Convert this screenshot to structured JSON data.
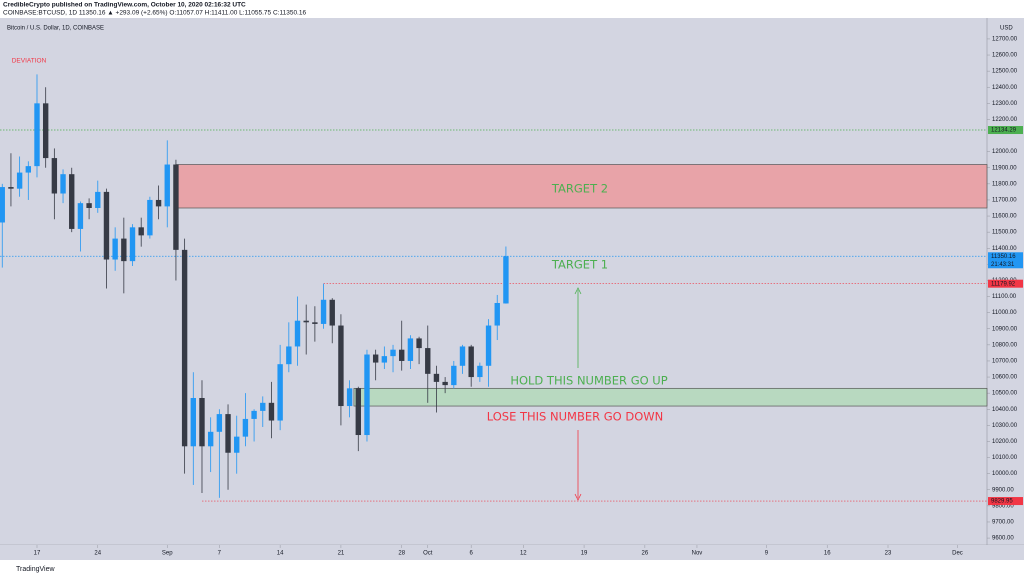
{
  "chart_data": {
    "type": "candlestick",
    "header": "CredibleCrypto published on TradingView.com, October 10, 2020 02:16:32 UTC",
    "ticker_line": "COINBASE:BTCUSD, 1D 11350.16 ▲ +293.09 (+2.65%) O:11057.07 H:11411.00 L:11055.75 C:11350.16",
    "title": "Bitcoin / U.S. Dollar, 1D, COINBASE",
    "y_axis_label": "USD",
    "footer": "TradingView",
    "up_color": "#2196f3",
    "down_color": "#363a45",
    "xlim": [
      -0.26,
      113.4
    ],
    "ylim": [
      9557,
      12830
    ],
    "xticks": [
      {
        "value": 4,
        "label": "17"
      },
      {
        "value": 11,
        "label": "24"
      },
      {
        "value": 19,
        "label": "Sep"
      },
      {
        "value": 25,
        "label": "7"
      },
      {
        "value": 32,
        "label": "14"
      },
      {
        "value": 39,
        "label": "21"
      },
      {
        "value": 46,
        "label": "28"
      },
      {
        "value": 49,
        "label": "Oct"
      },
      {
        "value": 54,
        "label": "6"
      },
      {
        "value": 60,
        "label": "12"
      },
      {
        "value": 67,
        "label": "19"
      },
      {
        "value": 74,
        "label": "26"
      },
      {
        "value": 80,
        "label": "Nov"
      },
      {
        "value": 88,
        "label": "9"
      },
      {
        "value": 95,
        "label": "16"
      },
      {
        "value": 102,
        "label": "23"
      },
      {
        "value": 110,
        "label": "Dec"
      }
    ],
    "yticks": [
      {
        "value": 9600,
        "label": "9600.00"
      },
      {
        "value": 9700,
        "label": "9700.00"
      },
      {
        "value": 9800,
        "label": "9800.00"
      },
      {
        "value": 9900,
        "label": "9900.00"
      },
      {
        "value": 10000,
        "label": "10000.00"
      },
      {
        "value": 10100,
        "label": "10100.00"
      },
      {
        "value": 10200,
        "label": "10200.00"
      },
      {
        "value": 10300,
        "label": "10300.00"
      },
      {
        "value": 10400,
        "label": "10400.00"
      },
      {
        "value": 10500,
        "label": "10500.00"
      },
      {
        "value": 10600,
        "label": "10600.00"
      },
      {
        "value": 10700,
        "label": "10700.00"
      },
      {
        "value": 10800,
        "label": "10800.00"
      },
      {
        "value": 10900,
        "label": "10900.00"
      },
      {
        "value": 11000,
        "label": "11000.00"
      },
      {
        "value": 11100,
        "label": "11100.00"
      },
      {
        "value": 11200,
        "label": "11200.00"
      },
      {
        "value": 11300,
        "label": "11300.00"
      },
      {
        "value": 11400,
        "label": "11400.00"
      },
      {
        "value": 11500,
        "label": "11500.00"
      },
      {
        "value": 11600,
        "label": "11600.00"
      },
      {
        "value": 11700,
        "label": "11700.00"
      },
      {
        "value": 11800,
        "label": "11800.00"
      },
      {
        "value": 11900,
        "label": "11900.00"
      },
      {
        "value": 12000,
        "label": "12000.00"
      },
      {
        "value": 12200,
        "label": "12200.00"
      },
      {
        "value": 12300,
        "label": "12300.00"
      },
      {
        "value": 12400,
        "label": "12400.00"
      },
      {
        "value": 12500,
        "label": "12500.00"
      },
      {
        "value": 12600,
        "label": "12600.00"
      },
      {
        "value": 12700,
        "label": "12700.00"
      }
    ],
    "open": [
      11560,
      11780,
      11770,
      11870,
      11910,
      12300,
      11960,
      11740,
      11860,
      11520,
      11680,
      11650,
      11750,
      11330,
      11460,
      11320,
      11530,
      11480,
      11700,
      11660,
      11920,
      11390,
      10170,
      10470,
      10170,
      10260,
      10370,
      10130,
      10230,
      10340,
      10390,
      10440,
      10330,
      10680,
      10790,
      10950,
      10940,
      10930,
      11080,
      10920,
      10420,
      10530,
      10240,
      10740,
      10690,
      10730,
      10770,
      10700,
      10840,
      10780,
      10620,
      10570,
      10550,
      10670,
      10790,
      10600,
      10670,
      10920,
      11057.07
    ],
    "high": [
      11800,
      11990,
      11970,
      11940,
      12480,
      12400,
      12020,
      11890,
      11900,
      11690,
      11710,
      11820,
      11770,
      11530,
      11590,
      11550,
      11590,
      11720,
      11790,
      12070,
      11950,
      11460,
      10630,
      10580,
      10350,
      10400,
      10430,
      10360,
      10500,
      10400,
      10480,
      10570,
      10800,
      10940,
      11100,
      11050,
      11040,
      11180,
      11090,
      10990,
      10580,
      10540,
      10770,
      10770,
      10790,
      10800,
      10950,
      10860,
      10850,
      10920,
      10670,
      10600,
      10700,
      10800,
      10800,
      10690,
      10960,
      11110,
      11411
    ],
    "low": [
      11280,
      11660,
      11720,
      11700,
      11840,
      11900,
      11580,
      11680,
      11500,
      11380,
      11580,
      11620,
      11150,
      11260,
      11120,
      11290,
      11410,
      11460,
      11580,
      11530,
      11200,
      10000,
      9930,
      9880,
      10010,
      9850,
      9900,
      10000,
      10170,
      10200,
      10290,
      10220,
      10270,
      10630,
      10670,
      10740,
      10820,
      10900,
      10810,
      10300,
      10350,
      10140,
      10200,
      10580,
      10650,
      10630,
      10640,
      10650,
      10680,
      10440,
      10380,
      10500,
      10530,
      10620,
      10540,
      10570,
      10540,
      10830,
      11055.75
    ],
    "close": [
      11780,
      11770,
      11870,
      11910,
      12300,
      11960,
      11740,
      11860,
      11520,
      11680,
      11650,
      11750,
      11330,
      11460,
      11320,
      11530,
      11480,
      11700,
      11660,
      11920,
      11390,
      10170,
      10470,
      10170,
      10260,
      10370,
      10130,
      10230,
      10340,
      10390,
      10440,
      10330,
      10680,
      10790,
      10950,
      10940,
      10930,
      11080,
      10920,
      10420,
      10530,
      10240,
      10740,
      10690,
      10730,
      10770,
      10700,
      10840,
      10780,
      10620,
      10570,
      10550,
      10670,
      10790,
      10600,
      10670,
      10920,
      11060,
      11350.16
    ],
    "zones": [
      {
        "label": "TARGET 2",
        "top": 11920,
        "bottom": 11650,
        "start": 20,
        "fill": "#e8a3a8",
        "stroke": "#555"
      },
      {
        "label": "HOLD THIS NUMBER GO UP",
        "top": 10530,
        "bottom": 10420,
        "start": 40.5,
        "fill": "#b8d9c0",
        "stroke": "#555"
      }
    ],
    "levels": [
      {
        "value": 12134.29,
        "color": "#4caf50",
        "start": -0.26
      },
      {
        "value": 11350.16,
        "color": "#2196f3",
        "start": -0.26,
        "countdown": "21:43:31"
      },
      {
        "value": 11179.92,
        "color": "#f23645",
        "start": 37
      },
      {
        "value": 9829.95,
        "color": "#f23645",
        "start": 23
      }
    ],
    "annotations": [
      "DEVIATION",
      "TARGET 1",
      "LOSE THIS NUMBER GO DOWN"
    ]
  }
}
